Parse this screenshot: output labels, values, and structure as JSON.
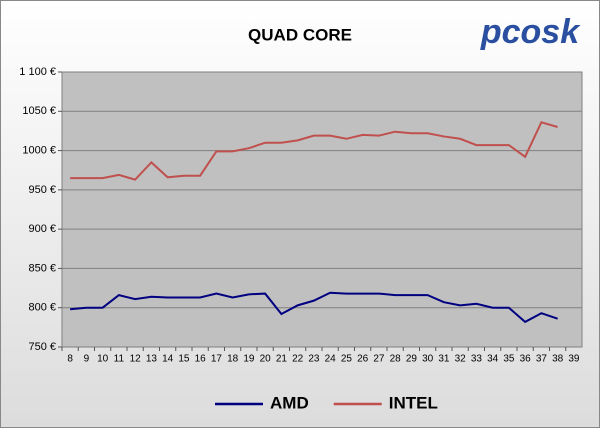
{
  "chart_data": {
    "type": "line",
    "title": "QUAD CORE",
    "logo": "pcosk",
    "categories": [
      "8",
      "9",
      "10",
      "11",
      "12",
      "13",
      "14",
      "15",
      "16",
      "17",
      "18",
      "19",
      "20",
      "21",
      "22",
      "23",
      "24",
      "25",
      "26",
      "27",
      "28",
      "29",
      "30",
      "31",
      "32",
      "33",
      "34",
      "35",
      "36",
      "37",
      "38",
      "39"
    ],
    "series": [
      {
        "name": "AMD",
        "color": "#000080",
        "values": [
          798,
          800,
          800,
          816,
          811,
          814,
          813,
          813,
          813,
          818,
          813,
          817,
          818,
          792,
          803,
          809,
          819,
          818,
          818,
          818,
          816,
          816,
          816,
          807,
          803,
          805,
          800,
          800,
          782,
          793,
          786,
          null
        ]
      },
      {
        "name": "INTEL",
        "color": "#c0504d",
        "values": [
          965,
          965,
          965,
          969,
          963,
          985,
          966,
          968,
          968,
          999,
          999,
          1003,
          1010,
          1010,
          1013,
          1019,
          1019,
          1015,
          1020,
          1019,
          1024,
          1022,
          1022,
          1018,
          1015,
          1007,
          1007,
          1007,
          992,
          1036,
          1030,
          null
        ]
      }
    ],
    "ylim": [
      750,
      1100
    ],
    "yticks": [
      {
        "value": 750,
        "label": "750 €"
      },
      {
        "value": 800,
        "label": "800 €"
      },
      {
        "value": 850,
        "label": "850 €"
      },
      {
        "value": 900,
        "label": "900 €"
      },
      {
        "value": 950,
        "label": "950 €"
      },
      {
        "value": 1000,
        "label": "1000 €"
      },
      {
        "value": 1050,
        "label": "1050 €"
      },
      {
        "value": 1100,
        "label": "1 100 €"
      }
    ],
    "grid": true,
    "legend": "bottom"
  }
}
